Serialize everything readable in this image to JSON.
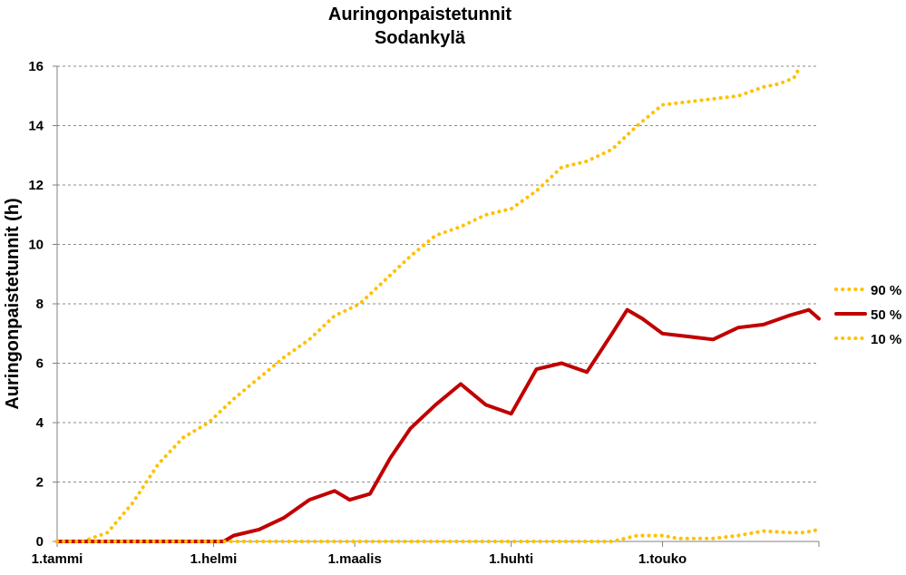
{
  "chart_data": {
    "type": "line",
    "title": "Auringonpaistetunnit",
    "subtitle": "Sodankylä",
    "xlabel": "",
    "ylabel": "Auringonpaistetunnit (h)",
    "ylim": [
      0,
      16
    ],
    "yticks": [
      "0",
      "2",
      "4",
      "6",
      "8",
      "10",
      "12",
      "14",
      "16"
    ],
    "xlim": [
      "1.tammi",
      "31.touko"
    ],
    "xticks": [
      {
        "label": "1.tammi",
        "day": 0
      },
      {
        "label": "1.helmi",
        "day": 31
      },
      {
        "label": "1.maalis",
        "day": 59
      },
      {
        "label": "1.huhti",
        "day": 90
      },
      {
        "label": "1.touko",
        "day": 120
      }
    ],
    "grid": true,
    "legend_position": "right",
    "x_day_range": [
      0,
      151
    ],
    "series": [
      {
        "name": "90 %",
        "style": "dotted",
        "color": "#FFC000",
        "points": [
          [
            0,
            0
          ],
          [
            5,
            0
          ],
          [
            10,
            0.3
          ],
          [
            15,
            1.3
          ],
          [
            20,
            2.6
          ],
          [
            25,
            3.5
          ],
          [
            30,
            4.0
          ],
          [
            35,
            4.8
          ],
          [
            40,
            5.5
          ],
          [
            45,
            6.2
          ],
          [
            50,
            6.8
          ],
          [
            55,
            7.6
          ],
          [
            60,
            8.0
          ],
          [
            65,
            8.8
          ],
          [
            70,
            9.6
          ],
          [
            75,
            10.3
          ],
          [
            80,
            10.6
          ],
          [
            85,
            11.0
          ],
          [
            90,
            11.2
          ],
          [
            95,
            11.8
          ],
          [
            100,
            12.6
          ],
          [
            105,
            12.8
          ],
          [
            110,
            13.2
          ],
          [
            115,
            14.0
          ],
          [
            120,
            14.7
          ],
          [
            125,
            14.8
          ],
          [
            130,
            14.9
          ],
          [
            135,
            15.0
          ],
          [
            140,
            15.3
          ],
          [
            143,
            15.4
          ],
          [
            146,
            15.6
          ],
          [
            147,
            15.9
          ]
        ]
      },
      {
        "name": "50 %",
        "style": "solid",
        "color": "#C00000",
        "points": [
          [
            0,
            0
          ],
          [
            25,
            0
          ],
          [
            33,
            0
          ],
          [
            35,
            0.2
          ],
          [
            40,
            0.4
          ],
          [
            45,
            0.8
          ],
          [
            50,
            1.4
          ],
          [
            55,
            1.7
          ],
          [
            58,
            1.4
          ],
          [
            62,
            1.6
          ],
          [
            66,
            2.8
          ],
          [
            70,
            3.8
          ],
          [
            75,
            4.6
          ],
          [
            80,
            5.3
          ],
          [
            85,
            4.6
          ],
          [
            90,
            4.3
          ],
          [
            95,
            5.8
          ],
          [
            100,
            6.0
          ],
          [
            105,
            5.7
          ],
          [
            110,
            7.0
          ],
          [
            113,
            7.8
          ],
          [
            116,
            7.5
          ],
          [
            120,
            7.0
          ],
          [
            125,
            6.9
          ],
          [
            130,
            6.8
          ],
          [
            135,
            7.2
          ],
          [
            140,
            7.3
          ],
          [
            145,
            7.6
          ],
          [
            149,
            7.8
          ],
          [
            151,
            7.5
          ]
        ]
      },
      {
        "name": "10 %",
        "style": "dotted",
        "color": "#FFC000",
        "points": [
          [
            0,
            0
          ],
          [
            110,
            0
          ],
          [
            115,
            0.2
          ],
          [
            120,
            0.2
          ],
          [
            123,
            0.1
          ],
          [
            130,
            0.1
          ],
          [
            135,
            0.2
          ],
          [
            140,
            0.35
          ],
          [
            145,
            0.3
          ],
          [
            148,
            0.3
          ],
          [
            151,
            0.4
          ]
        ]
      }
    ]
  }
}
